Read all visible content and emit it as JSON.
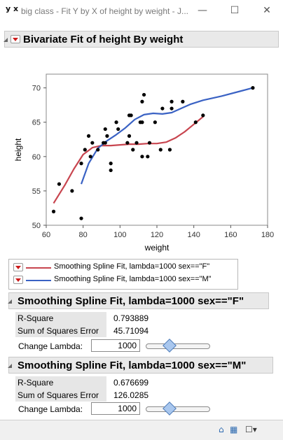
{
  "window": {
    "icon_label": "y x",
    "title": "big class - Fit Y by X of height by weight - J...",
    "minimize": "—",
    "maximize": "☐",
    "close": "✕"
  },
  "report": {
    "title": "Bivariate Fit of height By weight"
  },
  "chart_data": {
    "type": "scatter",
    "title": "",
    "xlabel": "weight",
    "ylabel": "height",
    "xlim": [
      60,
      180
    ],
    "ylim": [
      50,
      72
    ],
    "x_ticks": [
      60,
      80,
      100,
      120,
      140,
      160,
      180
    ],
    "y_ticks": [
      50,
      55,
      60,
      65,
      70
    ],
    "grid": false,
    "points": [
      [
        64,
        52
      ],
      [
        67,
        56
      ],
      [
        74,
        55
      ],
      [
        79,
        59
      ],
      [
        79,
        51
      ],
      [
        81,
        61
      ],
      [
        83,
        63
      ],
      [
        84,
        60
      ],
      [
        85,
        62
      ],
      [
        88,
        61
      ],
      [
        91,
        62
      ],
      [
        92,
        62
      ],
      [
        92,
        64
      ],
      [
        93,
        63
      ],
      [
        95,
        59
      ],
      [
        95,
        58
      ],
      [
        98,
        65
      ],
      [
        99,
        64
      ],
      [
        104,
        62
      ],
      [
        105,
        63
      ],
      [
        105,
        66
      ],
      [
        106,
        66
      ],
      [
        107,
        61
      ],
      [
        109,
        62
      ],
      [
        111,
        65
      ],
      [
        112,
        68
      ],
      [
        112,
        65
      ],
      [
        112,
        60
      ],
      [
        113,
        69
      ],
      [
        115,
        60
      ],
      [
        116,
        62
      ],
      [
        119,
        65
      ],
      [
        122,
        61
      ],
      [
        123,
        67
      ],
      [
        127,
        61
      ],
      [
        128,
        68
      ],
      [
        128,
        67
      ],
      [
        134,
        68
      ],
      [
        141,
        65
      ],
      [
        145,
        66
      ],
      [
        172,
        70
      ]
    ],
    "series": [
      {
        "name": "Smoothing Spline Fit, lambda=1000 sex==\"F\"",
        "color": "#c8454f",
        "x": [
          64,
          70,
          75,
          80,
          85,
          90,
          95,
          100,
          105,
          110,
          115,
          120,
          125,
          130,
          135,
          140,
          145
        ],
        "y": [
          53.2,
          55.8,
          58.2,
          60.3,
          61.3,
          61.6,
          61.6,
          61.7,
          61.8,
          61.8,
          61.9,
          61.9,
          62.1,
          62.7,
          63.6,
          64.7,
          65.8
        ]
      },
      {
        "name": "Smoothing Spline Fit, lambda=1000 sex==\"M\"",
        "color": "#3a62c4",
        "x": [
          79,
          83,
          88,
          93,
          98,
          103,
          108,
          113,
          118,
          123,
          128,
          133,
          138,
          145,
          155,
          165,
          172
        ],
        "y": [
          56.0,
          59.0,
          61.2,
          62.3,
          63.2,
          64.2,
          65.4,
          66.1,
          66.3,
          66.2,
          66.4,
          67.0,
          67.6,
          68.2,
          68.8,
          69.5,
          70.0
        ]
      }
    ]
  },
  "fits": [
    {
      "title": "Smoothing Spline Fit, lambda=1000 sex==\"F\"",
      "rsquare_label": "R-Square",
      "rsquare": "0.793889",
      "sse_label": "Sum of Squares Error",
      "sse": "45.71094",
      "lambda_label": "Change Lambda:",
      "lambda_value": "1000",
      "slider_level": 0.35
    },
    {
      "title": "Smoothing Spline Fit, lambda=1000 sex==\"M\"",
      "rsquare_label": "R-Square",
      "rsquare": "0.676699",
      "sse_label": "Sum of Squares Error",
      "sse": "126.0285",
      "lambda_label": "Change Lambda:",
      "lambda_value": "1000",
      "slider_level": 0.35
    }
  ]
}
